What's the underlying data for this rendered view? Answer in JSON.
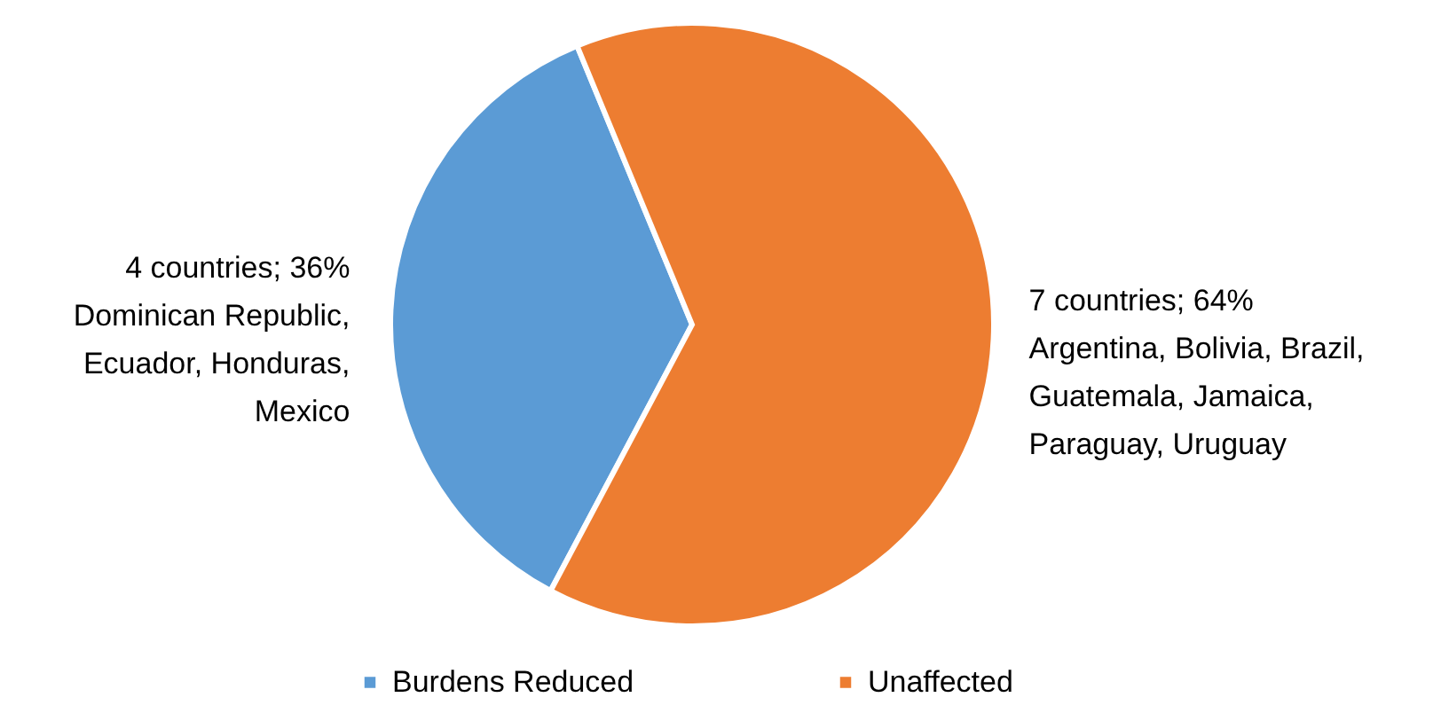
{
  "chart_data": {
    "type": "pie",
    "categories": [
      "Burdens Reduced",
      "Unaffected"
    ],
    "values": [
      36,
      64
    ],
    "colors": [
      "#5b9bd5",
      "#ed7d31"
    ],
    "value_labels": [
      "4 countries;  36%\nDominican Republic,\nEcuador, Honduras,\nMexico",
      "7 countries;  64%\nArgentina, Bolivia, Brazil,\nGuatemala, Jamaica,\nParaguay, Uruguay"
    ],
    "legend": "bottom"
  }
}
